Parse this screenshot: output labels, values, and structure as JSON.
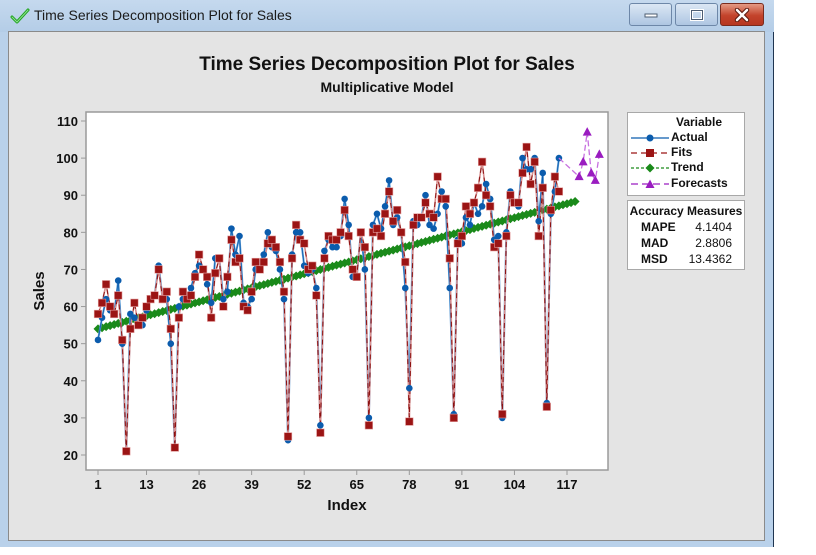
{
  "window": {
    "title": "Time Series Decomposition Plot for Sales",
    "buttons": {
      "minimize": "minimize",
      "maximize": "maximize",
      "close": "close"
    }
  },
  "chart": {
    "title": "Time Series Decomposition Plot for Sales",
    "subtitle": "Multiplicative Model",
    "xlabel": "Index",
    "ylabel": "Sales"
  },
  "legend": {
    "title": "Variable",
    "items": [
      {
        "label": "Actual",
        "color": "#0b5cad",
        "marker": "circle",
        "line": "solid"
      },
      {
        "label": "Fits",
        "color": "#9b1414",
        "marker": "square",
        "line": "dashed"
      },
      {
        "label": "Trend",
        "color": "#1a8a1a",
        "marker": "diamond",
        "line": "dotted"
      },
      {
        "label": "Forecasts",
        "color": "#9a1cc0",
        "marker": "triangle",
        "line": "dashed"
      }
    ]
  },
  "accuracy": {
    "title": "Accuracy Measures",
    "rows": [
      {
        "name": "MAPE",
        "value": "4.1404"
      },
      {
        "name": "MAD",
        "value": "2.8806"
      },
      {
        "name": "MSD",
        "value": "13.4362"
      }
    ]
  },
  "chart_data": {
    "type": "line",
    "title": "Time Series Decomposition Plot for Sales",
    "subtitle": "Multiplicative Model",
    "xlabel": "Index",
    "ylabel": "Sales",
    "xticks": [
      1,
      13,
      26,
      39,
      52,
      65,
      78,
      91,
      104,
      117
    ],
    "yticks": [
      20,
      30,
      40,
      50,
      60,
      70,
      80,
      90,
      100,
      110
    ],
    "xlim": [
      0,
      126
    ],
    "ylim": [
      18,
      112
    ],
    "legend_position": "right",
    "grid": false,
    "season_length": 12,
    "actual": [
      51,
      57,
      62,
      59,
      58,
      67,
      50,
      21,
      58,
      57,
      55,
      55,
      59,
      62,
      63,
      71,
      62,
      62,
      50,
      22,
      60,
      62,
      63,
      65,
      69,
      71,
      70,
      66,
      61,
      73,
      73,
      62,
      64,
      81,
      74,
      79,
      61,
      60,
      62,
      70,
      72,
      74,
      80,
      76,
      75,
      70,
      62,
      24,
      74,
      80,
      80,
      71,
      69,
      70,
      65,
      28,
      75,
      78,
      76,
      76,
      79,
      89,
      82,
      68,
      68,
      80,
      70,
      30,
      82,
      85,
      81,
      87,
      94,
      82,
      84,
      80,
      65,
      38,
      83,
      82,
      84,
      90,
      82,
      81,
      85,
      91,
      87,
      65,
      31,
      78,
      77,
      84,
      82,
      88,
      85,
      87,
      93,
      89,
      78,
      79,
      30,
      80,
      91,
      88,
      87,
      100,
      97,
      97,
      100,
      83,
      96,
      34,
      85,
      91,
      100
    ],
    "fits": [
      58,
      61,
      66,
      60,
      58,
      63,
      51,
      21,
      54,
      61,
      55,
      57,
      60,
      62,
      63,
      70,
      62,
      64,
      54,
      22,
      57,
      64,
      62,
      63,
      68,
      74,
      70,
      68,
      57,
      69,
      73,
      60,
      68,
      78,
      72,
      73,
      60,
      59,
      64,
      72,
      70,
      72,
      77,
      78,
      76,
      72,
      64,
      25,
      73,
      82,
      78,
      77,
      70,
      71,
      63,
      26,
      73,
      79,
      78,
      78,
      80,
      86,
      79,
      70,
      68,
      80,
      76,
      28,
      80,
      81,
      79,
      85,
      91,
      83,
      86,
      80,
      72,
      29,
      82,
      84,
      84,
      88,
      85,
      84,
      95,
      89,
      89,
      73,
      30,
      77,
      79,
      87,
      85,
      88,
      92,
      99,
      90,
      87,
      76,
      77,
      31,
      79,
      90,
      88,
      88,
      96,
      103,
      93,
      99,
      79,
      92,
      33,
      86,
      95,
      91
    ],
    "trend": {
      "start_index": 1,
      "end_index": 119,
      "start_value": 54.0,
      "end_value": 88.3
    },
    "forecasts": {
      "x": [
        120,
        121,
        122,
        123,
        124,
        125
      ],
      "values": [
        95,
        99,
        107,
        96,
        94,
        101
      ]
    }
  }
}
